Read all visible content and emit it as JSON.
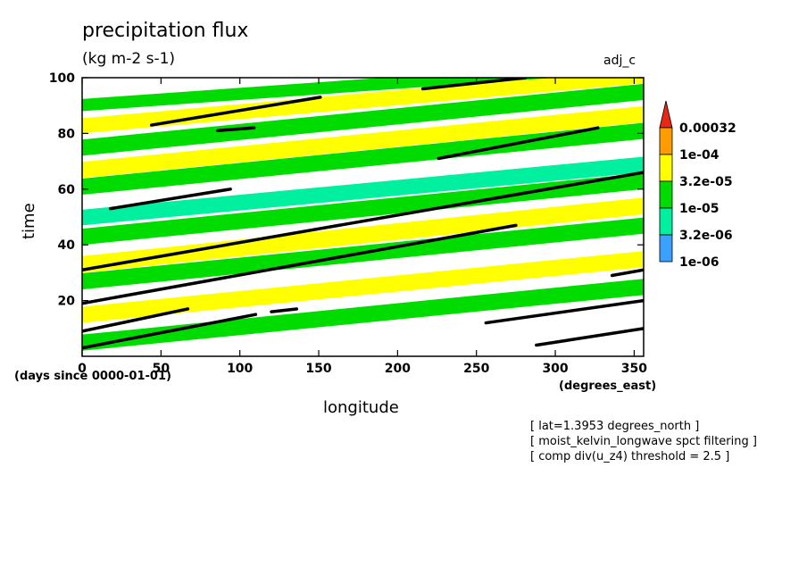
{
  "chart_data": {
    "type": "heatmap",
    "title": "precipitation flux",
    "subtitle": "(kg m-2 s-1)",
    "run_label": "adj_c",
    "xlabel": "longitude",
    "ylabel": "time",
    "x_units_label": "(degrees_east)",
    "y_units_label": "(days since 0000-01-01)",
    "xlim": [
      0,
      356
    ],
    "ylim": [
      0,
      100
    ],
    "x_ticks": [
      0,
      50,
      100,
      150,
      200,
      250,
      300,
      350
    ],
    "y_ticks": [
      20,
      40,
      60,
      80,
      100
    ],
    "legend": {
      "placement": "right",
      "levels": [
        "0.00032",
        "1e-04",
        "3.2e-05",
        "1e-05",
        "3.2e-06",
        "1e-06"
      ],
      "colors": [
        "#ff9c00",
        "#ffff00",
        "#00dc00",
        "#00f0a0",
        "#3ca0ff",
        "#e62814"
      ]
    },
    "bands": [
      {
        "x0": 0,
        "y0": 2,
        "x1": 356,
        "y1": 22,
        "level": "3.2e-05"
      },
      {
        "x0": 0,
        "y0": 12,
        "x1": 356,
        "y1": 32,
        "level": "1e-04"
      },
      {
        "x0": 0,
        "y0": 24,
        "x1": 356,
        "y1": 44,
        "level": "3.2e-05"
      },
      {
        "x0": 0,
        "y0": 30,
        "x1": 356,
        "y1": 51,
        "level": "1e-04"
      },
      {
        "x0": 0,
        "y0": 40,
        "x1": 356,
        "y1": 60,
        "level": "3.2e-05"
      },
      {
        "x0": 0,
        "y0": 47,
        "x1": 356,
        "y1": 66,
        "level": "1e-05"
      },
      {
        "x0": 0,
        "y0": 58,
        "x1": 356,
        "y1": 78,
        "level": "3.2e-05"
      },
      {
        "x0": 0,
        "y0": 64,
        "x1": 356,
        "y1": 84,
        "level": "1e-04"
      },
      {
        "x0": 0,
        "y0": 72,
        "x1": 356,
        "y1": 92,
        "level": "3.2e-05"
      },
      {
        "x0": 0,
        "y0": 80,
        "x1": 356,
        "y1": 98,
        "level": "1e-04"
      },
      {
        "x0": 0,
        "y0": 88,
        "x1": 300,
        "y1": 100,
        "level": "3.2e-05"
      }
    ],
    "threshold_tracks": [
      {
        "x0": 0,
        "y0": 31,
        "x1": 356,
        "y1": 66
      },
      {
        "x0": 0,
        "y0": 19,
        "x1": 275,
        "y1": 47
      },
      {
        "x0": 0,
        "y0": 9,
        "x1": 67,
        "y1": 17
      },
      {
        "x0": 0,
        "y0": 3,
        "x1": 110,
        "y1": 15
      },
      {
        "x0": 18,
        "y0": 53,
        "x1": 94,
        "y1": 60
      },
      {
        "x0": 44,
        "y0": 83,
        "x1": 151,
        "y1": 93
      },
      {
        "x0": 86,
        "y0": 81,
        "x1": 109,
        "y1": 82
      },
      {
        "x0": 226,
        "y0": 71,
        "x1": 327,
        "y1": 82
      },
      {
        "x0": 216,
        "y0": 96,
        "x1": 281,
        "y1": 100
      },
      {
        "x0": 256,
        "y0": 12,
        "x1": 356,
        "y1": 20
      },
      {
        "x0": 288,
        "y0": 4,
        "x1": 356,
        "y1": 10
      },
      {
        "x0": 120,
        "y0": 16,
        "x1": 136,
        "y1": 17
      },
      {
        "x0": 336,
        "y0": 29,
        "x1": 356,
        "y1": 31
      }
    ]
  },
  "notes": [
    "[ lat=1.3953 degrees_north ]",
    "[ moist_kelvin_longwave spct filtering ]",
    "[ comp div(u_z4) threshold = 2.5 ]"
  ]
}
